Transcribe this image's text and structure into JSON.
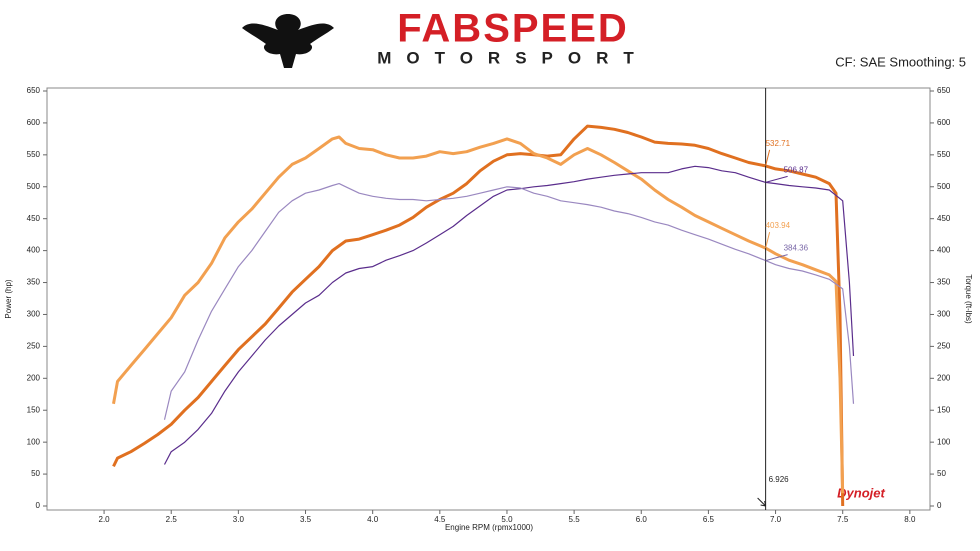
{
  "chart_data": {
    "type": "line",
    "logo_text": "FABSPEED",
    "logo_subtext": "MOTORSPORT",
    "settings_note": "CF: SAE Smoothing: 5",
    "watermark": "Dynojet",
    "xlabel": "Engine RPM (rpmx1000)",
    "ylabel": "Power (hp)",
    "y2label": "Torque (ft-lbs)",
    "xlim": [
      1.575,
      8.15
    ],
    "ylim": [
      0,
      650
    ],
    "y2lim": [
      0,
      650
    ],
    "xticks": [
      {
        "value": 2.0,
        "label": "2.0"
      },
      2.5,
      {
        "value": 3.0,
        "label": "3.0"
      },
      3.5,
      {
        "value": 4.0,
        "label": "4.0"
      },
      4.5,
      {
        "value": 5.0,
        "label": "5.0"
      },
      5.5,
      {
        "value": 6.0,
        "label": "6.0"
      },
      6.5,
      {
        "value": 7.0,
        "label": "7.0"
      },
      7.5,
      {
        "value": 8.0,
        "label": "8.0"
      }
    ],
    "yticks": [
      0,
      50,
      100,
      150,
      200,
      250,
      300,
      350,
      400,
      450,
      500,
      550,
      600,
      650
    ],
    "y2ticks": [
      0,
      50,
      100,
      150,
      200,
      250,
      300,
      350,
      400,
      450,
      500,
      550,
      600,
      650
    ],
    "cursor": 6.926,
    "series": [
      {
        "color": "#e07020",
        "width": 3,
        "axis": "y",
        "x": [
          2.07,
          2.1,
          2.2,
          2.3,
          2.4,
          2.5,
          2.6,
          2.7,
          2.8,
          2.9,
          3.0,
          3.1,
          3.2,
          3.3,
          3.4,
          3.5,
          3.6,
          3.7,
          3.8,
          3.9,
          4.0,
          4.1,
          4.2,
          4.3,
          4.4,
          4.5,
          4.6,
          4.7,
          4.8,
          4.9,
          5.0,
          5.1,
          5.2,
          5.3,
          5.4,
          5.5,
          5.6,
          5.7,
          5.8,
          5.9,
          6.0,
          6.1,
          6.2,
          6.3,
          6.4,
          6.5,
          6.6,
          6.7,
          6.8,
          6.926,
          7.0,
          7.1,
          7.2,
          7.3,
          7.4,
          7.45,
          7.48,
          7.5
        ],
        "values": [
          62,
          75,
          85,
          98,
          112,
          128,
          150,
          170,
          195,
          220,
          245,
          265,
          285,
          310,
          335,
          355,
          375,
          400,
          415,
          418,
          425,
          432,
          440,
          452,
          468,
          480,
          490,
          505,
          525,
          540,
          550,
          552,
          550,
          548,
          550,
          575,
          595,
          593,
          590,
          585,
          578,
          570,
          568,
          567,
          565,
          560,
          552,
          545,
          538,
          532.71,
          528,
          525,
          520,
          515,
          505,
          490,
          300,
          0
        ]
      },
      {
        "color": "#f2a050",
        "width": 3,
        "axis": "y2",
        "x": [
          2.07,
          2.1,
          2.2,
          2.3,
          2.4,
          2.5,
          2.6,
          2.7,
          2.8,
          2.9,
          3.0,
          3.1,
          3.2,
          3.3,
          3.4,
          3.5,
          3.6,
          3.7,
          3.75,
          3.8,
          3.9,
          4.0,
          4.1,
          4.2,
          4.3,
          4.4,
          4.5,
          4.6,
          4.7,
          4.8,
          4.9,
          5.0,
          5.1,
          5.2,
          5.3,
          5.4,
          5.5,
          5.6,
          5.7,
          5.8,
          5.9,
          6.0,
          6.1,
          6.2,
          6.3,
          6.4,
          6.5,
          6.6,
          6.7,
          6.8,
          6.926,
          7.0,
          7.1,
          7.2,
          7.3,
          7.4,
          7.45,
          7.48,
          7.5
        ],
        "values": [
          160,
          195,
          220,
          245,
          270,
          295,
          330,
          350,
          380,
          420,
          445,
          465,
          490,
          515,
          535,
          545,
          560,
          575,
          578,
          568,
          560,
          558,
          550,
          545,
          545,
          548,
          555,
          552,
          555,
          562,
          568,
          575,
          568,
          552,
          545,
          535,
          550,
          560,
          550,
          538,
          525,
          512,
          495,
          480,
          468,
          455,
          445,
          435,
          425,
          415,
          403.94,
          395,
          385,
          378,
          370,
          362,
          352,
          200,
          20
        ]
      },
      {
        "color": "#5a2d8c",
        "width": 1.2,
        "axis": "y",
        "x": [
          2.45,
          2.5,
          2.6,
          2.7,
          2.8,
          2.9,
          3.0,
          3.1,
          3.2,
          3.3,
          3.4,
          3.5,
          3.6,
          3.7,
          3.8,
          3.9,
          4.0,
          4.1,
          4.2,
          4.3,
          4.4,
          4.5,
          4.6,
          4.7,
          4.8,
          4.9,
          5.0,
          5.1,
          5.2,
          5.3,
          5.4,
          5.5,
          5.6,
          5.7,
          5.8,
          5.9,
          6.0,
          6.1,
          6.2,
          6.3,
          6.4,
          6.5,
          6.6,
          6.7,
          6.8,
          6.926,
          7.0,
          7.1,
          7.2,
          7.3,
          7.4,
          7.5,
          7.55,
          7.58
        ],
        "values": [
          65,
          85,
          100,
          120,
          145,
          180,
          210,
          235,
          260,
          282,
          300,
          318,
          330,
          350,
          365,
          372,
          375,
          385,
          392,
          400,
          412,
          425,
          438,
          455,
          470,
          485,
          495,
          497,
          500,
          502,
          505,
          508,
          512,
          515,
          518,
          520,
          522,
          522,
          522,
          528,
          532,
          530,
          525,
          522,
          515,
          506.87,
          505,
          502,
          500,
          498,
          495,
          478,
          350,
          235
        ]
      },
      {
        "color": "#9a88c0",
        "width": 1.2,
        "axis": "y2",
        "x": [
          2.45,
          2.5,
          2.6,
          2.7,
          2.8,
          2.9,
          3.0,
          3.1,
          3.2,
          3.3,
          3.4,
          3.5,
          3.6,
          3.7,
          3.75,
          3.8,
          3.9,
          4.0,
          4.1,
          4.2,
          4.3,
          4.4,
          4.5,
          4.6,
          4.7,
          4.8,
          4.9,
          5.0,
          5.1,
          5.2,
          5.3,
          5.4,
          5.5,
          5.6,
          5.7,
          5.8,
          5.9,
          6.0,
          6.1,
          6.2,
          6.3,
          6.4,
          6.5,
          6.6,
          6.7,
          6.8,
          6.926,
          7.0,
          7.1,
          7.2,
          7.3,
          7.4,
          7.5,
          7.55,
          7.58
        ],
        "values": [
          135,
          180,
          210,
          260,
          305,
          340,
          375,
          400,
          430,
          460,
          478,
          490,
          495,
          502,
          505,
          500,
          490,
          485,
          482,
          480,
          480,
          478,
          480,
          482,
          485,
          490,
          495,
          500,
          498,
          490,
          485,
          478,
          475,
          472,
          468,
          462,
          458,
          452,
          445,
          440,
          432,
          425,
          418,
          410,
          402,
          395,
          384.36,
          378,
          372,
          368,
          362,
          355,
          340,
          250,
          160
        ]
      }
    ],
    "annotations": [
      {
        "x": 6.926,
        "y": 532.71,
        "color": "#e07020"
      },
      {
        "x": 6.926,
        "y": 506.87,
        "color": "#5a2d8c"
      },
      {
        "x": 6.926,
        "y": 403.94,
        "color": "#f2a050"
      },
      {
        "x": 6.926,
        "y": 384.36,
        "color": "#7a68a8"
      }
    ]
  }
}
